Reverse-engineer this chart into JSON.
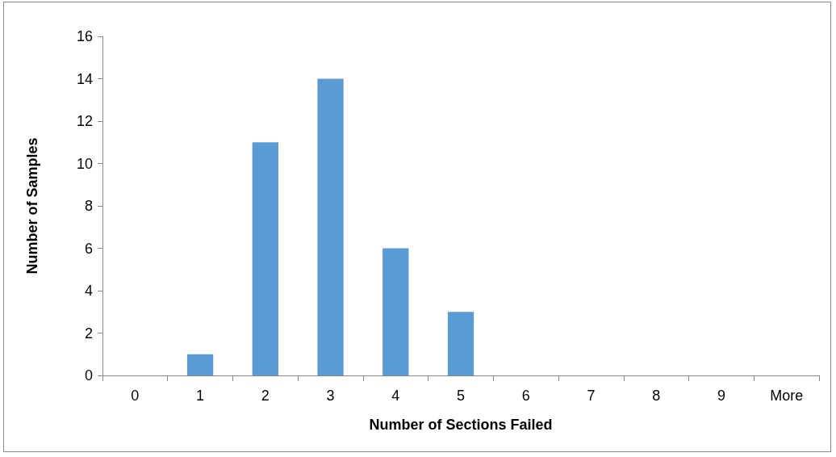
{
  "chart_data": {
    "type": "bar",
    "xlabel": "Number of Sections Failed",
    "ylabel": "Number of Samples",
    "categories": [
      "0",
      "1",
      "2",
      "3",
      "4",
      "5",
      "6",
      "7",
      "8",
      "9",
      "More"
    ],
    "values": [
      0,
      1,
      11,
      14,
      6,
      3,
      0,
      0,
      0,
      0,
      0
    ],
    "color": "#5b9bd5",
    "ylim": [
      0,
      16
    ],
    "yticks": [
      0,
      2,
      4,
      6,
      8,
      10,
      12,
      14,
      16
    ]
  }
}
